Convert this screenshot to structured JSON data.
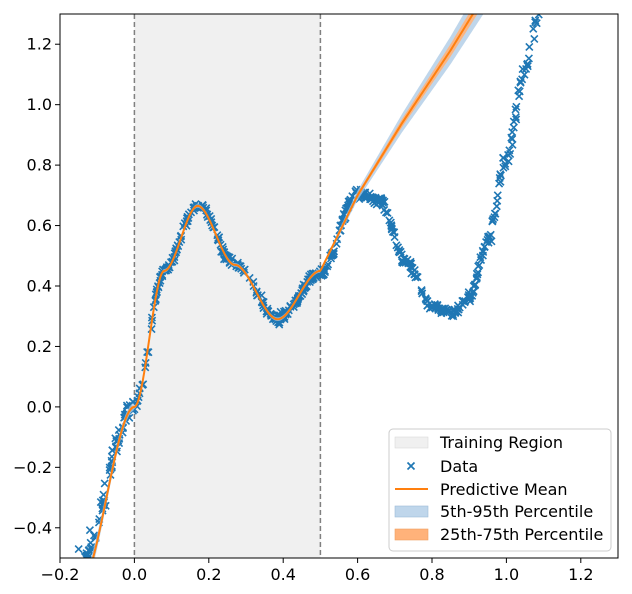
{
  "chart_data": {
    "type": "scatter",
    "xlim": [
      -0.2,
      1.3
    ],
    "ylim": [
      -0.5,
      1.3
    ],
    "x_ticks": [
      -0.2,
      0.0,
      0.2,
      0.4,
      0.6,
      0.8,
      1.0,
      1.2
    ],
    "x_tick_labels": [
      "−0.2",
      "0.0",
      "0.2",
      "0.4",
      "0.6",
      "0.8",
      "1.0",
      "1.2"
    ],
    "y_ticks": [
      -0.4,
      -0.2,
      0.0,
      0.2,
      0.4,
      0.6,
      0.8,
      1.0,
      1.2
    ],
    "y_tick_labels": [
      "−0.4",
      "−0.2",
      "0.0",
      "0.2",
      "0.4",
      "0.6",
      "0.8",
      "1.0",
      "1.2"
    ],
    "grid": false,
    "legend_position": "lower-right",
    "training_region": [
      0.0,
      0.5
    ],
    "data_x_range": [
      -0.15,
      1.1
    ],
    "predict_x_range": [
      -0.15,
      0.95
    ],
    "colors": {
      "data": "#1f77b4",
      "mean": "#ff7f0e",
      "band_outer": "#aac8e4",
      "band_inner": "#ffb27a",
      "region": "#f0f0f0",
      "boundary": "#808080"
    },
    "legend": [
      {
        "key": "region",
        "label": "Training Region"
      },
      {
        "key": "data",
        "label": "Data"
      },
      {
        "key": "mean",
        "label": "Predictive Mean"
      },
      {
        "key": "band_outer",
        "label": "5th-95th Percentile"
      },
      {
        "key": "band_inner",
        "label": "25th-75th Percentile"
      }
    ]
  }
}
